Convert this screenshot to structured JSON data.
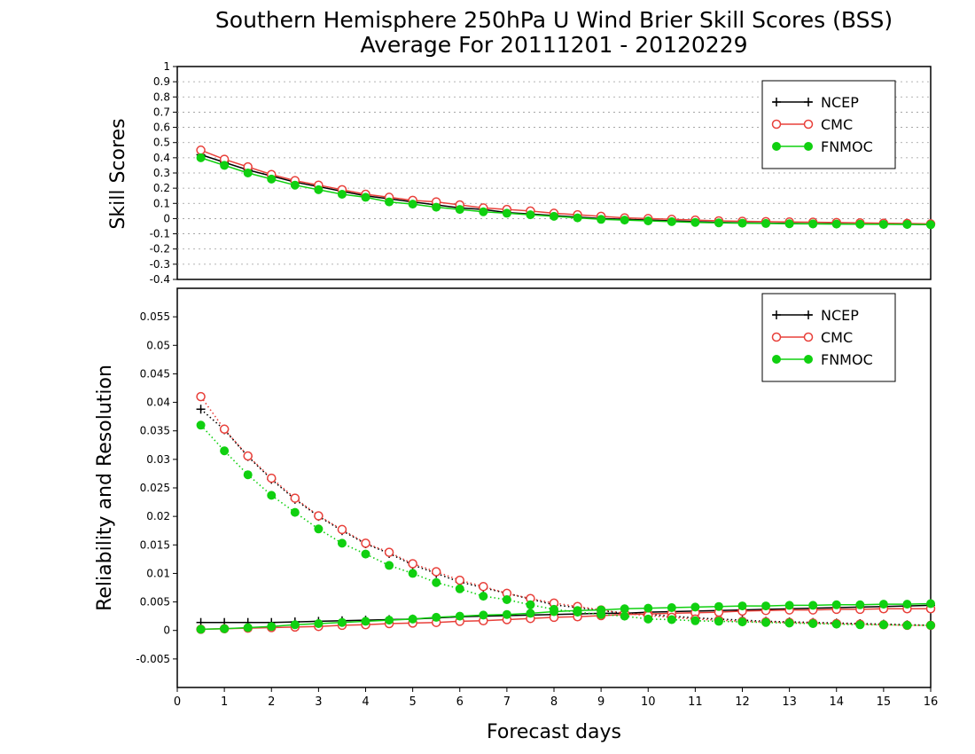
{
  "title": "Southern Hemisphere 250hPa U Wind Brier Skill Scores (BSS)",
  "subtitle": "Average For 20111201 - 20120229",
  "colors": {
    "NCEP": "#000000",
    "CMC": "#e8403a",
    "FNMOC": "#10d010"
  },
  "chart_data": [
    {
      "type": "line",
      "ylabel": "Skill Scores",
      "xlabel": "",
      "xlim": [
        0,
        16
      ],
      "ylim": [
        -0.4,
        1
      ],
      "yticks": [
        "-0.4",
        "-0.3",
        "-0.2",
        "-0.1",
        "0",
        "0.1",
        "0.2",
        "0.3",
        "0.4",
        "0.5",
        "0.6",
        "0.7",
        "0.8",
        "0.9",
        "1"
      ],
      "grid": true,
      "legend_position": "top-right",
      "x": [
        0.5,
        1,
        1.5,
        2,
        2.5,
        3,
        3.5,
        4,
        4.5,
        5,
        5.5,
        6,
        6.5,
        7,
        7.5,
        8,
        8.5,
        9,
        9.5,
        10,
        10.5,
        11,
        11.5,
        12,
        12.5,
        13,
        13.5,
        14,
        14.5,
        15,
        15.5,
        16
      ],
      "series": [
        {
          "name": "NCEP",
          "marker": "plus",
          "values": [
            0.42,
            0.37,
            0.32,
            0.28,
            0.24,
            0.21,
            0.18,
            0.15,
            0.13,
            0.11,
            0.09,
            0.07,
            0.06,
            0.04,
            0.03,
            0.02,
            0.01,
            0.0,
            -0.005,
            -0.01,
            -0.015,
            -0.02,
            -0.025,
            -0.028,
            -0.03,
            -0.032,
            -0.034,
            -0.035,
            -0.036,
            -0.037,
            -0.038,
            -0.04
          ]
        },
        {
          "name": "CMC",
          "marker": "open-circle",
          "values": [
            0.45,
            0.39,
            0.34,
            0.29,
            0.25,
            0.22,
            0.19,
            0.16,
            0.14,
            0.12,
            0.11,
            0.09,
            0.07,
            0.06,
            0.05,
            0.035,
            0.025,
            0.015,
            0.005,
            0.0,
            -0.005,
            -0.01,
            -0.015,
            -0.018,
            -0.02,
            -0.022,
            -0.024,
            -0.026,
            -0.028,
            -0.03,
            -0.032,
            -0.035
          ]
        },
        {
          "name": "FNMOC",
          "marker": "filled-circle",
          "values": [
            0.4,
            0.35,
            0.3,
            0.26,
            0.22,
            0.19,
            0.16,
            0.14,
            0.11,
            0.095,
            0.075,
            0.06,
            0.045,
            0.035,
            0.025,
            0.015,
            0.005,
            -0.005,
            -0.01,
            -0.015,
            -0.02,
            -0.025,
            -0.028,
            -0.03,
            -0.032,
            -0.034,
            -0.035,
            -0.036,
            -0.037,
            -0.038,
            -0.038,
            -0.04
          ]
        }
      ]
    },
    {
      "type": "line",
      "ylabel": "Reliability and Resolution",
      "xlabel": "Forecast days",
      "xlim": [
        0,
        16
      ],
      "ylim": [
        -0.01,
        0.06
      ],
      "yticks": [
        "-0.005",
        "0",
        "0.005",
        "0.01",
        "0.015",
        "0.02",
        "0.025",
        "0.03",
        "0.035",
        "0.04",
        "0.045",
        "0.05",
        "0.055"
      ],
      "xticks": [
        "0",
        "1",
        "2",
        "3",
        "4",
        "5",
        "6",
        "7",
        "8",
        "9",
        "10",
        "11",
        "12",
        "13",
        "14",
        "15",
        "16"
      ],
      "legend_position": "top-right",
      "x": [
        0.5,
        1,
        1.5,
        2,
        2.5,
        3,
        3.5,
        4,
        4.5,
        5,
        5.5,
        6,
        6.5,
        7,
        7.5,
        8,
        8.5,
        9,
        9.5,
        10,
        10.5,
        11,
        11.5,
        12,
        12.5,
        13,
        13.5,
        14,
        14.5,
        15,
        15.5,
        16
      ],
      "series": [
        {
          "name": "NCEP",
          "marker": "plus",
          "line": "solid",
          "values": [
            0.0014,
            0.0014,
            0.0014,
            0.0014,
            0.0015,
            0.0016,
            0.0017,
            0.0018,
            0.0019,
            0.002,
            0.0022,
            0.0024,
            0.0025,
            0.0026,
            0.0027,
            0.0028,
            0.0029,
            0.003,
            0.003,
            0.0032,
            0.0033,
            0.0034,
            0.0035,
            0.0036,
            0.0037,
            0.0038,
            0.0039,
            0.004,
            0.0041,
            0.0042,
            0.0043,
            0.0044
          ]
        },
        {
          "name": "NCEP",
          "marker": "plus",
          "line": "dotted",
          "values": [
            0.0388,
            0.0352,
            0.0305,
            0.0265,
            0.023,
            0.02,
            0.0175,
            0.0152,
            0.0135,
            0.0115,
            0.01,
            0.0085,
            0.0075,
            0.0065,
            0.0055,
            0.0045,
            0.004,
            0.0035,
            0.003,
            0.0028,
            0.0025,
            0.0022,
            0.002,
            0.0018,
            0.0016,
            0.0015,
            0.0014,
            0.0013,
            0.0012,
            0.0011,
            0.001,
            0.0009
          ]
        },
        {
          "name": "CMC",
          "marker": "open-circle",
          "line": "solid",
          "values": [
            0.0002,
            0.0003,
            0.0004,
            0.0005,
            0.0006,
            0.0007,
            0.0009,
            0.001,
            0.0012,
            0.0013,
            0.0014,
            0.0016,
            0.0017,
            0.0019,
            0.0021,
            0.0023,
            0.0024,
            0.0026,
            0.0028,
            0.0029,
            0.003,
            0.0031,
            0.0032,
            0.0034,
            0.0035,
            0.0036,
            0.0036,
            0.0037,
            0.0037,
            0.0038,
            0.0038,
            0.0038
          ]
        },
        {
          "name": "CMC",
          "marker": "open-circle",
          "line": "dotted",
          "values": [
            0.041,
            0.0353,
            0.0306,
            0.0267,
            0.0232,
            0.0201,
            0.0177,
            0.0153,
            0.0137,
            0.0117,
            0.0103,
            0.0088,
            0.0077,
            0.0065,
            0.0056,
            0.0048,
            0.0042,
            0.0036,
            0.003,
            0.0026,
            0.0023,
            0.002,
            0.0018,
            0.0016,
            0.0015,
            0.0014,
            0.0013,
            0.0012,
            0.0011,
            0.001,
            0.0009,
            0.0009
          ]
        },
        {
          "name": "FNMOC",
          "marker": "filled-circle",
          "line": "solid",
          "values": [
            0.0002,
            0.0003,
            0.0005,
            0.0007,
            0.001,
            0.0012,
            0.0014,
            0.0016,
            0.0018,
            0.002,
            0.0023,
            0.0025,
            0.0027,
            0.0028,
            0.003,
            0.0033,
            0.0035,
            0.0036,
            0.0038,
            0.0039,
            0.004,
            0.0041,
            0.0042,
            0.0043,
            0.0043,
            0.0044,
            0.0044,
            0.0045,
            0.0045,
            0.0046,
            0.0046,
            0.0047
          ]
        },
        {
          "name": "FNMOC",
          "marker": "filled-circle",
          "line": "dotted",
          "values": [
            0.036,
            0.0315,
            0.0273,
            0.0237,
            0.0207,
            0.0178,
            0.0153,
            0.0134,
            0.0114,
            0.01,
            0.0084,
            0.0073,
            0.006,
            0.0054,
            0.0045,
            0.0037,
            0.0032,
            0.0028,
            0.0025,
            0.002,
            0.0019,
            0.0017,
            0.0016,
            0.0015,
            0.0014,
            0.0013,
            0.0012,
            0.0011,
            0.001,
            0.001,
            0.0009,
            0.0009
          ]
        }
      ]
    }
  ]
}
